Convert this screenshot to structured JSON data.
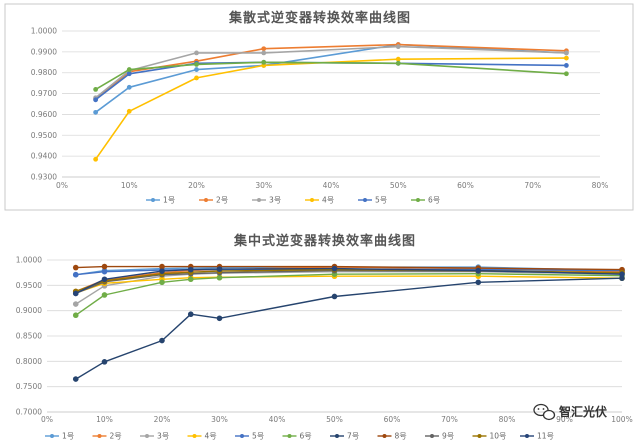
{
  "chart_data": [
    {
      "type": "line",
      "title": "集散式逆变器转换效率曲线图",
      "xlabel": "",
      "ylabel": "",
      "x_ticks": [
        "0%",
        "10%",
        "20%",
        "30%",
        "40%",
        "50%",
        "60%",
        "70%",
        "80%"
      ],
      "xlim": [
        0,
        0.8
      ],
      "y_ticks": [
        "0.9300",
        "0.9400",
        "0.9500",
        "0.9600",
        "0.9700",
        "0.9800",
        "0.9900",
        "1.0000"
      ],
      "ylim": [
        0.93,
        1.0
      ],
      "grid": true,
      "legend_position": "bottom",
      "x": [
        0.05,
        0.1,
        0.2,
        0.3,
        0.5,
        0.75
      ],
      "series": [
        {
          "name": "1号",
          "color": "#5b9bd5",
          "values": [
            0.961,
            0.973,
            0.9815,
            0.9835,
            0.9935,
            0.9895
          ]
        },
        {
          "name": "2号",
          "color": "#ed7d31",
          "values": [
            0.9675,
            0.9805,
            0.9855,
            0.9915,
            0.9935,
            0.9905
          ]
        },
        {
          "name": "3号",
          "color": "#a5a5a5",
          "values": [
            0.968,
            0.981,
            0.9895,
            0.9895,
            0.9925,
            0.9895
          ]
        },
        {
          "name": "4号",
          "color": "#ffc000",
          "values": [
            0.9385,
            0.9615,
            0.9775,
            0.9835,
            0.9865,
            0.987
          ]
        },
        {
          "name": "5号",
          "color": "#4472c4",
          "values": [
            0.967,
            0.9795,
            0.9845,
            0.985,
            0.9845,
            0.9835
          ]
        },
        {
          "name": "6号",
          "color": "#70ad47",
          "values": [
            0.972,
            0.9815,
            0.984,
            0.985,
            0.9845,
            0.9795
          ]
        }
      ]
    },
    {
      "type": "line",
      "title": "集中式逆变器转换效率曲线图",
      "xlabel": "",
      "ylabel": "",
      "x_ticks": [
        "0%",
        "10%",
        "20%",
        "30%",
        "40%",
        "50%",
        "60%",
        "70%",
        "80%",
        "90%",
        "100%"
      ],
      "xlim": [
        0,
        1.0
      ],
      "y_ticks": [
        "0.7000",
        "0.7500",
        "0.8000",
        "0.8500",
        "0.9000",
        "0.9500",
        "1.0000"
      ],
      "ylim": [
        0.7,
        1.0
      ],
      "grid": true,
      "legend_position": "bottom",
      "x": [
        0.05,
        0.1,
        0.2,
        0.25,
        0.3,
        0.5,
        0.75,
        1.0
      ],
      "series": [
        {
          "name": "1号",
          "color": "#5b9bd5",
          "values": [
            0.971,
            0.979,
            0.983,
            0.984,
            0.985,
            0.986,
            0.986,
            0.979
          ]
        },
        {
          "name": "2号",
          "color": "#ed7d31",
          "values": [
            0.938,
            0.961,
            0.975,
            0.979,
            0.981,
            0.986,
            0.983,
            0.977
          ]
        },
        {
          "name": "3号",
          "color": "#a5a5a5",
          "values": [
            0.913,
            0.949,
            0.968,
            0.972,
            0.974,
            0.977,
            0.977,
            0.972
          ]
        },
        {
          "name": "4号",
          "color": "#ffc000",
          "values": [
            0.935,
            0.954,
            0.962,
            0.965,
            0.966,
            0.968,
            0.968,
            0.964
          ]
        },
        {
          "name": "5号",
          "color": "#4472c4",
          "values": [
            0.971,
            0.977,
            0.98,
            0.981,
            0.981,
            0.982,
            0.981,
            0.979
          ]
        },
        {
          "name": "6号",
          "color": "#70ad47",
          "values": [
            0.891,
            0.931,
            0.956,
            0.962,
            0.965,
            0.972,
            0.973,
            0.969
          ]
        },
        {
          "name": "7号",
          "color": "#26446e",
          "values": [
            0.765,
            0.799,
            0.841,
            0.893,
            0.885,
            0.928,
            0.956,
            0.964
          ]
        },
        {
          "name": "8号",
          "color": "#9e480e",
          "values": [
            0.985,
            0.987,
            0.987,
            0.987,
            0.987,
            0.987,
            0.984,
            0.981
          ]
        },
        {
          "name": "9号",
          "color": "#636363",
          "values": [
            0.934,
            0.957,
            0.971,
            0.973,
            0.975,
            0.979,
            0.978,
            0.974
          ]
        },
        {
          "name": "10号",
          "color": "#997300",
          "values": [
            0.938,
            0.959,
            0.973,
            0.976,
            0.978,
            0.981,
            0.979,
            0.975
          ]
        },
        {
          "name": "11号",
          "color": "#264478",
          "values": [
            0.934,
            0.962,
            0.978,
            0.981,
            0.982,
            0.983,
            0.979,
            0.972
          ]
        }
      ]
    }
  ],
  "watermark": {
    "text": "智汇光伏",
    "icon": "wechat-icon"
  }
}
